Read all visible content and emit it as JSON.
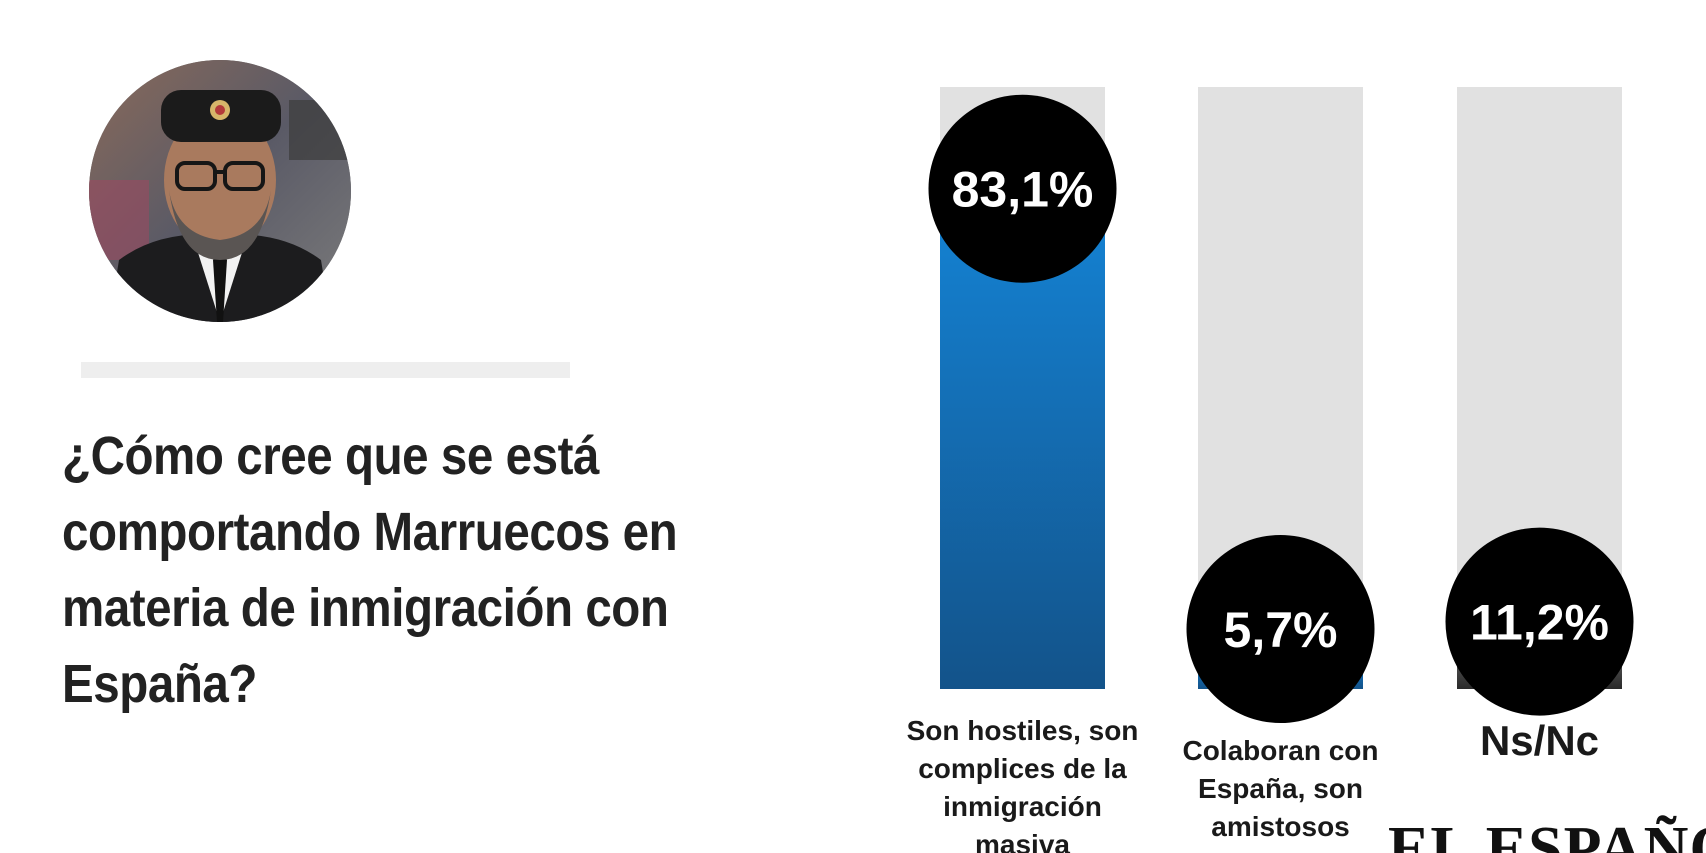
{
  "question": "¿Cómo cree que se está comportando Marruecos en materia de inmigración con España?",
  "publisher": "EL ESPAÑOL",
  "chart_data": {
    "type": "bar",
    "categories": [
      "Son hostiles, son complices de la inmigración masiva",
      "Colaboran con España, son amistosos",
      "Ns/Nc"
    ],
    "category_lines": [
      [
        "Son hostiles, son",
        "complices de la",
        "inmigración",
        "masiva"
      ],
      [
        "Colaboran con",
        "España, son",
        "amistosos"
      ],
      [
        "Ns/Nc"
      ]
    ],
    "values": [
      83.1,
      5.7,
      11.2
    ],
    "value_labels": [
      "83,1%",
      "5,7%",
      "11,2%"
    ],
    "ylim": [
      0,
      100
    ],
    "bar_colors": [
      "#1380cf",
      "#1380cf",
      "#333333"
    ],
    "track_color": "#e1e1e1",
    "grid": false,
    "legend": "none"
  }
}
